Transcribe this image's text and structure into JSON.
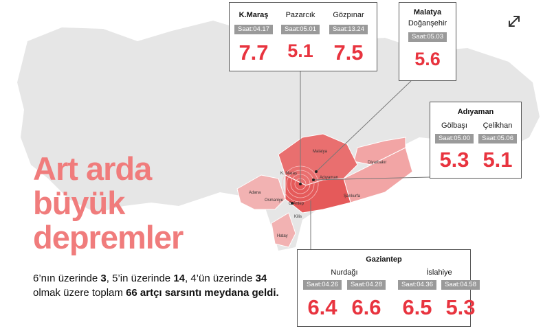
{
  "headline": [
    "Art arda",
    "büyük",
    "depremler"
  ],
  "summary": [
    "6’nın üzerinde ",
    "3",
    ", 5’in üzerinde ",
    "14",
    ", 4’ün üzerinde ",
    "34",
    " olmak üzere toplam ",
    "66 artçı sarsıntı meydana geldi."
  ],
  "map_labels": [
    "Malatya",
    "K. Maraş",
    "Adıyaman",
    "Diyarbakır",
    "Adana",
    "Osmaniye",
    "G.Antep",
    "Şanlıurfa",
    "Kilis",
    "Hatay"
  ],
  "callouts": [
    {
      "columns": [
        {
          "name": "K.Maraş",
          "events": [
            {
              "time": "Saat:04.17",
              "magnitude": 7.7
            }
          ]
        },
        {
          "name": "Pazarcık",
          "events": [
            {
              "time": "Saat:05.01",
              "magnitude": 5.1
            }
          ]
        },
        {
          "name": "Gözpınar",
          "events": [
            {
              "time": "Saat:13.24",
              "magnitude": 7.5
            }
          ]
        }
      ]
    },
    {
      "title": "Malatya",
      "columns": [
        {
          "name": "Doğanşehir",
          "events": [
            {
              "time": "Saat:05.03",
              "magnitude": 5.6
            }
          ]
        }
      ]
    },
    {
      "title": "Adıyaman",
      "columns": [
        {
          "name": "Gölbaşı",
          "events": [
            {
              "time": "Saat:05.00",
              "magnitude": 5.3
            }
          ]
        },
        {
          "name": "Çelikhan",
          "events": [
            {
              "time": "Saat:05.06",
              "magnitude": 5.1
            }
          ]
        }
      ]
    },
    {
      "title": "Gaziantep",
      "columns": [
        {
          "name": "Nurdağı",
          "events": [
            {
              "time": "Saat:04.26",
              "magnitude": 6.4
            },
            {
              "time": "Saat:04.28",
              "magnitude": 6.6
            }
          ]
        },
        {
          "name": "İslahiye",
          "events": [
            {
              "time": "Saat:04.36",
              "magnitude": 6.5
            },
            {
              "time": "Saat:04.58",
              "magnitude": 5.3
            }
          ]
        }
      ]
    }
  ]
}
